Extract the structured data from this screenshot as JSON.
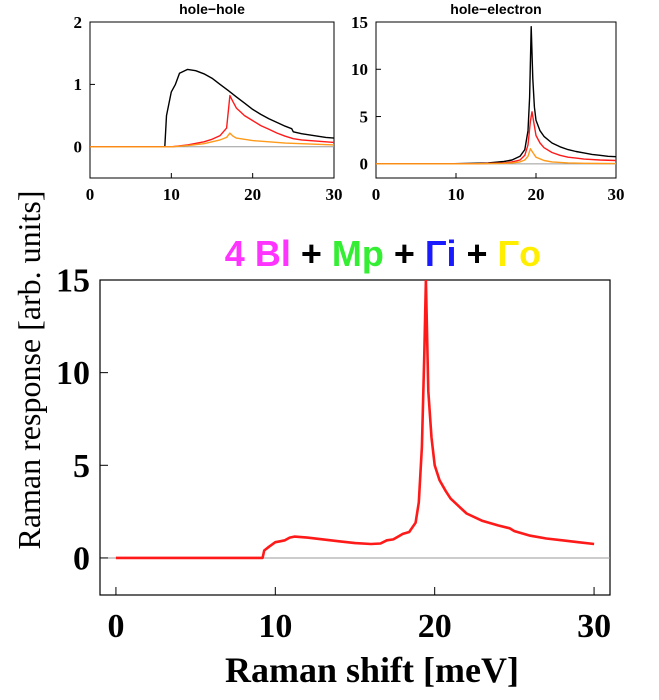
{
  "figure": {
    "shared_ylabel": "Raman response [arb. units]"
  },
  "colors": {
    "black": "#000000",
    "red": "#ff1a1a",
    "orange": "#ff9a1a",
    "baseline": "#9a9a9a",
    "magenta": "#ff33ff",
    "green": "#33ee33",
    "blue": "#1a1aff",
    "yellow": "#ffee00"
  },
  "bottom_title": {
    "part1": "4 Bl",
    "plus1": " + ",
    "part2": "Mp",
    "plus2": " + ",
    "part3": "Γi",
    "plus3": " + ",
    "part4": "Γo"
  },
  "chart_data": [
    {
      "id": "hole-hole",
      "type": "line",
      "title": "hole−hole",
      "xlim": [
        0,
        30
      ],
      "ylim": [
        -0.5,
        2
      ],
      "xticks": [
        "0",
        "10",
        "20",
        "30"
      ],
      "yticks": [
        "0",
        "1",
        "2"
      ],
      "series": [
        {
          "color": "#000000",
          "x": [
            0,
            9.2,
            9.4,
            10,
            10.5,
            11,
            12,
            13,
            14,
            15,
            16,
            17,
            18,
            19,
            20,
            21,
            22,
            23,
            24,
            24.8,
            25,
            26,
            27,
            28,
            29,
            30
          ],
          "y": [
            0,
            0,
            0.5,
            0.88,
            1.0,
            1.18,
            1.24,
            1.22,
            1.17,
            1.1,
            1.0,
            0.9,
            0.8,
            0.7,
            0.6,
            0.52,
            0.45,
            0.39,
            0.33,
            0.29,
            0.24,
            0.21,
            0.19,
            0.17,
            0.15,
            0.14
          ]
        },
        {
          "color": "#ff1a1a",
          "x": [
            0,
            10,
            12,
            14,
            15,
            16,
            16.8,
            17.2,
            17.6,
            18,
            18.5,
            19,
            20,
            21,
            22,
            23,
            24,
            25,
            26,
            27,
            28,
            29,
            30
          ],
          "y": [
            0,
            0,
            0.03,
            0.08,
            0.12,
            0.18,
            0.3,
            0.82,
            0.72,
            0.62,
            0.56,
            0.5,
            0.42,
            0.34,
            0.28,
            0.22,
            0.17,
            0.13,
            0.11,
            0.1,
            0.09,
            0.08,
            0.07
          ]
        },
        {
          "color": "#ff9a1a",
          "x": [
            0,
            10,
            12,
            14,
            15,
            16,
            16.8,
            17.2,
            17.6,
            18,
            19,
            20,
            22,
            24,
            26,
            28,
            30
          ],
          "y": [
            0,
            0,
            0.02,
            0.05,
            0.08,
            0.11,
            0.15,
            0.22,
            0.17,
            0.14,
            0.12,
            0.1,
            0.08,
            0.06,
            0.05,
            0.04,
            0.03
          ]
        }
      ]
    },
    {
      "id": "hole-electron",
      "type": "line",
      "title": "hole−electron",
      "xlim": [
        0,
        30
      ],
      "ylim": [
        -1.5,
        15
      ],
      "xticks": [
        "0",
        "10",
        "20",
        "30"
      ],
      "yticks": [
        "0",
        "5",
        "10",
        "15"
      ],
      "series": [
        {
          "color": "#000000",
          "x": [
            0,
            9,
            12,
            14,
            16,
            17,
            18,
            18.6,
            19,
            19.2,
            19.4,
            19.6,
            19.8,
            20,
            20.5,
            21,
            22,
            23,
            24,
            25,
            26,
            27,
            28,
            29,
            30
          ],
          "y": [
            0,
            0,
            0.05,
            0.1,
            0.25,
            0.4,
            0.8,
            1.5,
            3.5,
            7,
            14.5,
            9,
            6,
            4.6,
            3.5,
            2.9,
            2.2,
            1.8,
            1.5,
            1.3,
            1.15,
            1.0,
            0.9,
            0.8,
            0.75
          ]
        },
        {
          "color": "#ff1a1a",
          "x": [
            0,
            12,
            16,
            17,
            18,
            18.6,
            19,
            19.3,
            19.5,
            19.8,
            20,
            20.5,
            21,
            22,
            23,
            24,
            25,
            26,
            28,
            30
          ],
          "y": [
            0,
            0,
            0.1,
            0.2,
            0.4,
            0.9,
            2.0,
            4.5,
            5.5,
            4.0,
            3.0,
            2.2,
            1.7,
            1.2,
            0.9,
            0.7,
            0.6,
            0.5,
            0.4,
            0.35
          ]
        },
        {
          "color": "#ff9a1a",
          "x": [
            0,
            12,
            16,
            17,
            18,
            18.6,
            19,
            19.3,
            19.6,
            20,
            21,
            22,
            24,
            26,
            28,
            30
          ],
          "y": [
            0,
            0,
            0.05,
            0.1,
            0.2,
            0.4,
            0.8,
            1.6,
            1.2,
            0.7,
            0.35,
            0.2,
            0.1,
            0.05,
            0.03,
            0.02
          ]
        }
      ]
    },
    {
      "id": "total",
      "type": "line",
      "title": "",
      "xlabel": "Raman shift [meV]",
      "xlim": [
        -1,
        31
      ],
      "ylim": [
        -2,
        15
      ],
      "xticks": [
        "0",
        "10",
        "20",
        "30"
      ],
      "yticks": [
        "0",
        "5",
        "10",
        "15"
      ],
      "series": [
        {
          "color": "#ff1a1a",
          "x": [
            0,
            9.2,
            9.3,
            9.6,
            10,
            10.3,
            10.6,
            10.9,
            11.2,
            12,
            13,
            14,
            15,
            16,
            16.6,
            17,
            17.4,
            17.8,
            18.0,
            18.4,
            18.8,
            19.0,
            19.2,
            19.35,
            19.45,
            19.6,
            19.8,
            20.0,
            20.3,
            20.7,
            21,
            21.5,
            22,
            23,
            24,
            24.7,
            25,
            26,
            27,
            28,
            29,
            30
          ],
          "y": [
            0,
            0,
            0.4,
            0.6,
            0.85,
            0.9,
            0.95,
            1.1,
            1.15,
            1.1,
            1.0,
            0.9,
            0.8,
            0.75,
            0.78,
            0.95,
            1.0,
            1.2,
            1.3,
            1.4,
            1.9,
            3.0,
            6.0,
            11.0,
            15,
            9.0,
            6.5,
            5.0,
            4.2,
            3.6,
            3.2,
            2.8,
            2.4,
            2.0,
            1.75,
            1.6,
            1.45,
            1.2,
            1.05,
            0.95,
            0.85,
            0.75
          ]
        }
      ]
    }
  ]
}
